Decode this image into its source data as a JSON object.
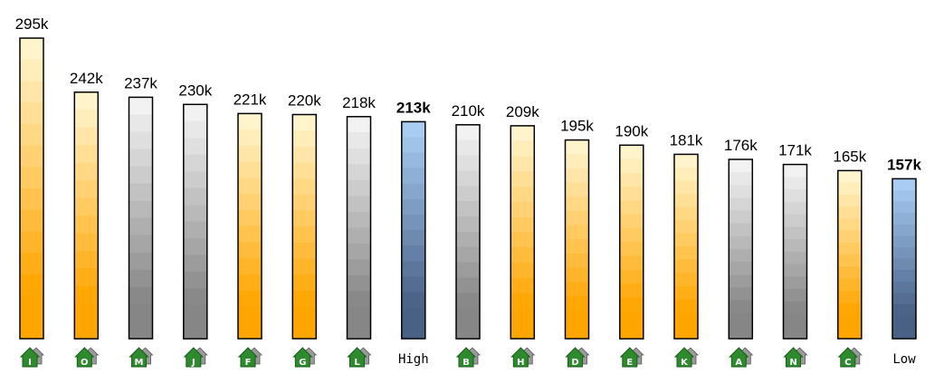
{
  "chart_data": {
    "type": "bar",
    "title": "",
    "xlabel": "",
    "ylabel": "",
    "ylim": [
      0,
      300
    ],
    "grid": false,
    "legend": "none",
    "categories": [
      "I",
      "O",
      "M",
      "J",
      "F",
      "G",
      "L",
      "High",
      "B",
      "H",
      "D",
      "E",
      "K",
      "A",
      "N",
      "C",
      "Low"
    ],
    "values": [
      295,
      242,
      237,
      230,
      221,
      220,
      218,
      213,
      210,
      209,
      195,
      190,
      181,
      176,
      171,
      165,
      157
    ],
    "value_labels": [
      "295k",
      "242k",
      "237k",
      "230k",
      "221k",
      "220k",
      "218k",
      "213k",
      "210k",
      "209k",
      "195k",
      "190k",
      "181k",
      "176k",
      "171k",
      "165k",
      "157k"
    ],
    "bar_styles": [
      "orange",
      "orange",
      "gray",
      "gray",
      "orange",
      "orange",
      "gray",
      "blue",
      "gray",
      "orange",
      "orange",
      "orange",
      "orange",
      "gray",
      "gray",
      "orange",
      "blue"
    ],
    "label_kinds": [
      "house",
      "house",
      "house",
      "house",
      "house",
      "house",
      "house",
      "text",
      "house",
      "house",
      "house",
      "house",
      "house",
      "house",
      "house",
      "house",
      "text"
    ],
    "bold_labels": [
      false,
      false,
      false,
      false,
      false,
      false,
      false,
      true,
      false,
      false,
      false,
      false,
      false,
      false,
      false,
      false,
      true
    ],
    "colors": {
      "orange_top": "#fff4cc",
      "orange_bottom": "#ffa500",
      "gray_top": "#f2f2f2",
      "gray_bottom": "#868686",
      "blue_top": "#a8ccf2",
      "blue_bottom": "#4a6186",
      "house_fill": "#2d8a2d",
      "house_dark": "#1a5c1a"
    }
  }
}
